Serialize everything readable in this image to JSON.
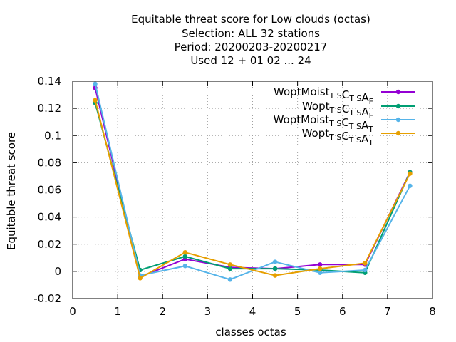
{
  "chart_data": {
    "type": "line",
    "title_lines": [
      "Equitable threat score  for Low clouds (octas)",
      "Selection: ALL     32 stations",
      "Period: 20200203-20200217",
      "Used  12 + 01 02 ... 24"
    ],
    "xlabel": "classes octas",
    "ylabel": "Equitable threat score",
    "xlim": [
      0,
      8
    ],
    "ylim": [
      -0.02,
      0.14
    ],
    "x_ticks": [
      0,
      1,
      2,
      3,
      4,
      5,
      6,
      7,
      8
    ],
    "y_ticks": [
      -0.02,
      0,
      0.02,
      0.04,
      0.06,
      0.08,
      0.1,
      0.12,
      0.14
    ],
    "x_tick_labels": [
      "0",
      "1",
      "2",
      "3",
      "4",
      "5",
      "6",
      "7",
      "8"
    ],
    "y_tick_labels": [
      "-0.02",
      "0",
      "0.02",
      "0.04",
      "0.06",
      "0.08",
      "0.1",
      "0.12",
      "0.14"
    ],
    "grid": true,
    "legend_position": "top-right",
    "x": [
      0.5,
      1.5,
      2.5,
      3.5,
      4.5,
      5.5,
      6.5,
      7.5
    ],
    "series": [
      {
        "name": "WoptMoist TS CTS AF",
        "legend": {
          "parts": [
            [
              "WoptMoist",
              ""
            ],
            [
              "T S",
              "sub"
            ],
            [
              "C",
              ""
            ],
            [
              "T S",
              "sub"
            ],
            [
              "A",
              ""
            ],
            [
              "F",
              "sub"
            ]
          ]
        },
        "color": "#9400d3",
        "values": [
          0.135,
          -0.004,
          0.009,
          0.003,
          0.002,
          0.005,
          0.005,
          0.073
        ]
      },
      {
        "name": "Wopt TS CTS AF",
        "legend": {
          "parts": [
            [
              "Wopt",
              ""
            ],
            [
              "T S",
              "sub"
            ],
            [
              "C",
              ""
            ],
            [
              "T S",
              "sub"
            ],
            [
              "A",
              ""
            ],
            [
              "F",
              "sub"
            ]
          ]
        },
        "color": "#009e73",
        "values": [
          0.124,
          0.001,
          0.011,
          0.002,
          0.002,
          0.001,
          -0.001,
          0.073
        ]
      },
      {
        "name": "WoptMoist TS CTS AT",
        "legend": {
          "parts": [
            [
              "WoptMoist",
              ""
            ],
            [
              "T S",
              "sub"
            ],
            [
              "C",
              ""
            ],
            [
              "T S",
              "sub"
            ],
            [
              "A",
              ""
            ],
            [
              "T",
              "sub"
            ]
          ]
        },
        "color": "#56b4e9",
        "values": [
          0.138,
          -0.003,
          0.004,
          -0.006,
          0.007,
          -0.001,
          0.001,
          0.063
        ]
      },
      {
        "name": "Wopt TS CTS AT",
        "legend": {
          "parts": [
            [
              "Wopt",
              ""
            ],
            [
              "T S",
              "sub"
            ],
            [
              "C",
              ""
            ],
            [
              "T S",
              "sub"
            ],
            [
              "A",
              ""
            ],
            [
              "T",
              "sub"
            ]
          ]
        },
        "color": "#e69f00",
        "values": [
          0.126,
          -0.005,
          0.014,
          0.005,
          -0.003,
          0.002,
          0.006,
          0.072
        ]
      }
    ]
  }
}
